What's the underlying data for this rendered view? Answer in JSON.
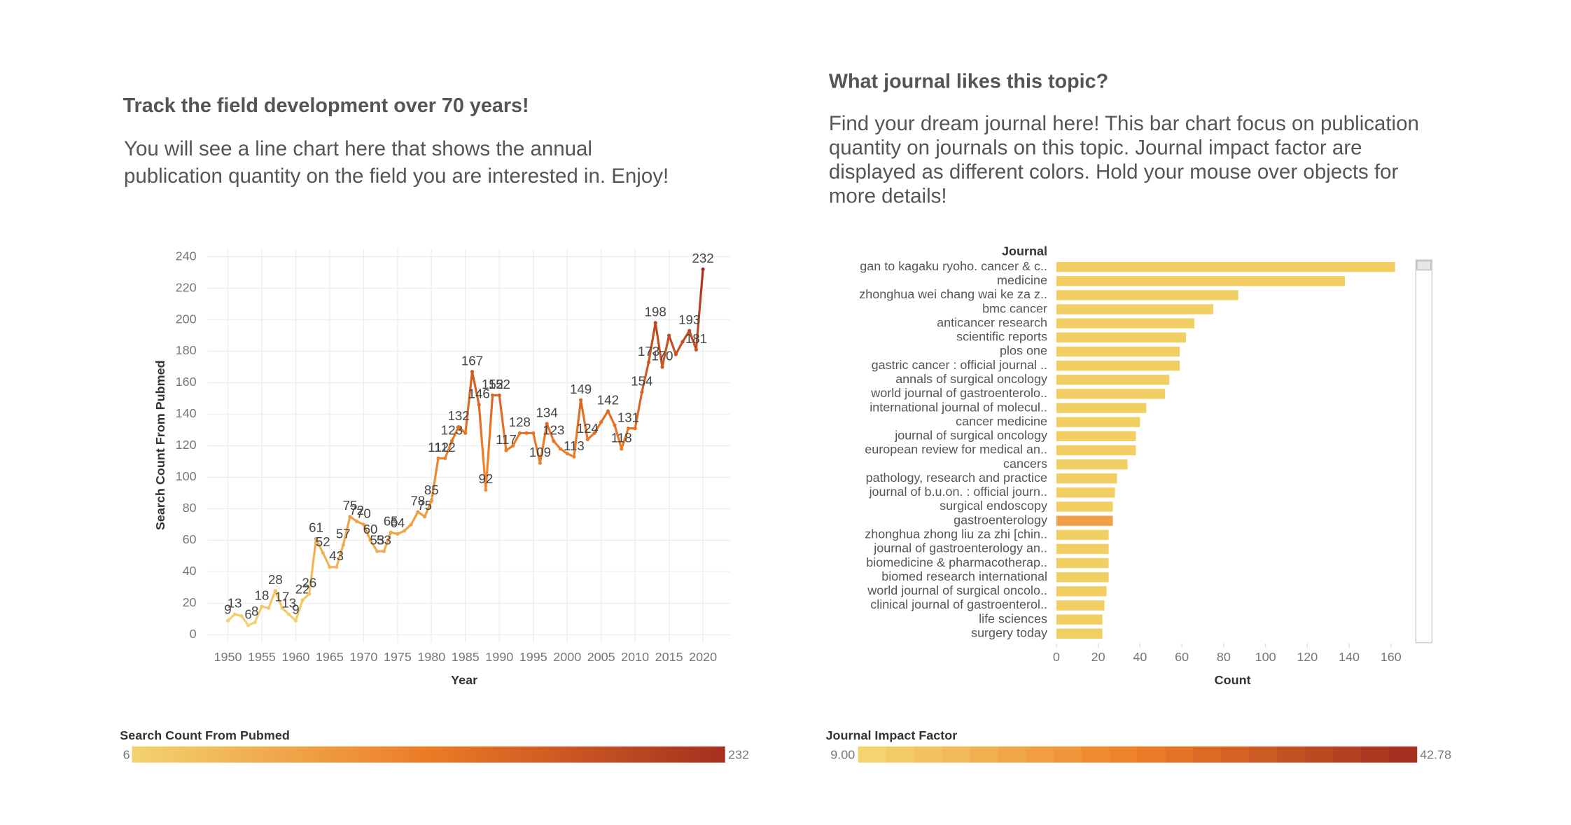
{
  "chart_data": [
    {
      "type": "line",
      "title": "Track the field development over 70 years!",
      "subtitle_lines": [
        "You will see a line chart here that shows the annual",
        "publication quantity on the field you are interested in. Enjoy!"
      ],
      "x_label": "Year",
      "y_label": "Search Count From Pubmed",
      "x": [
        1950,
        1951,
        1952,
        1953,
        1954,
        1955,
        1956,
        1957,
        1958,
        1959,
        1960,
        1961,
        1962,
        1963,
        1964,
        1965,
        1966,
        1967,
        1968,
        1969,
        1970,
        1971,
        1972,
        1973,
        1974,
        1975,
        1976,
        1977,
        1978,
        1979,
        1980,
        1981,
        1982,
        1983,
        1984,
        1985,
        1986,
        1987,
        1988,
        1989,
        1990,
        1991,
        1992,
        1993,
        1994,
        1995,
        1996,
        1997,
        1998,
        1999,
        2000,
        2001,
        2002,
        2003,
        2004,
        2005,
        2006,
        2007,
        2008,
        2009,
        2010,
        2011,
        2012,
        2013,
        2014,
        2015,
        2016,
        2017,
        2018,
        2019,
        2020
      ],
      "values": [
        9,
        13,
        12,
        6,
        8,
        18,
        17,
        28,
        17,
        13,
        9,
        22,
        26,
        61,
        52,
        43,
        43,
        57,
        75,
        72,
        70,
        60,
        53,
        53,
        65,
        64,
        66,
        70,
        78,
        75,
        85,
        112,
        112,
        123,
        132,
        128,
        167,
        146,
        92,
        152,
        152,
        117,
        120,
        128,
        128,
        128,
        109,
        134,
        123,
        118,
        115,
        113,
        149,
        124,
        128,
        135,
        142,
        133,
        118,
        131,
        131,
        154,
        173,
        198,
        170,
        190,
        178,
        186,
        193,
        181,
        232
      ],
      "value_labels": [
        "9",
        "13",
        null,
        "6",
        "8",
        "18",
        null,
        "28",
        "17",
        "13",
        "9",
        "22",
        "26",
        "61",
        "52",
        null,
        "43",
        "57",
        "75",
        "72",
        "70",
        "60",
        "53",
        "53",
        "65",
        "64",
        null,
        null,
        "78",
        "75",
        "85",
        "112",
        "112",
        "123",
        "132",
        null,
        "167",
        "146",
        "92",
        "152",
        "152",
        "117",
        null,
        "128",
        null,
        null,
        "109",
        "134",
        "123",
        null,
        null,
        "113",
        "149",
        "124",
        null,
        null,
        "142",
        null,
        "118",
        "131",
        null,
        "154",
        "173",
        "198",
        "170",
        null,
        null,
        null,
        "193",
        "181",
        "232"
      ],
      "xlim": [
        1947,
        2024
      ],
      "xticks": [
        1950,
        1955,
        1960,
        1965,
        1970,
        1975,
        1980,
        1985,
        1990,
        1995,
        2000,
        2005,
        2010,
        2015,
        2020
      ],
      "ylim": [
        -5,
        245
      ],
      "yticks": [
        0,
        20,
        40,
        60,
        80,
        100,
        120,
        140,
        160,
        180,
        200,
        220,
        240
      ],
      "grid": true,
      "color_scale": {
        "title": "Search Count From Pubmed",
        "min": 6,
        "max": 232,
        "colors": [
          "#f3d36f",
          "#ec7b26",
          "#a5301f"
        ]
      }
    },
    {
      "type": "hbar",
      "title": "What journal likes this topic?",
      "subtitle_lines": [
        "Find your dream journal here! This bar chart focus on publication",
        "quantity on journals on this topic. Journal impact factor are",
        "displayed as different colors. Hold your mouse over objects for",
        "more details!"
      ],
      "x_label": "Count",
      "y_label": "Journal",
      "categories": [
        "gan to kagaku ryoho. cancer & c..",
        "medicine",
        "zhonghua wei chang wai ke za z..",
        "bmc cancer",
        "anticancer research",
        "scientific reports",
        "plos one",
        "gastric cancer : official journal ..",
        "annals of surgical oncology",
        "world journal of gastroenterolo..",
        "international journal of molecul..",
        "cancer medicine",
        "journal of surgical oncology",
        "european review for medical an..",
        "cancers",
        "pathology, research and practice",
        "journal of b.u.on. : official journ..",
        "surgical endoscopy",
        "gastroenterology",
        "zhonghua zhong liu za zhi [chin..",
        "journal of gastroenterology an..",
        "biomedicine & pharmacotherap..",
        "biomed research international",
        "world journal of surgical oncolo..",
        "clinical journal of gastroenterol..",
        "life sciences",
        "surgery today"
      ],
      "values": [
        162,
        138,
        87,
        75,
        66,
        62,
        59,
        59,
        54,
        52,
        43,
        40,
        38,
        38,
        34,
        29,
        28,
        27,
        27,
        25,
        25,
        25,
        25,
        24,
        23,
        22,
        22
      ],
      "colors": [
        "#f2cf63",
        "#f2cf63",
        "#f2cf63",
        "#f2cf63",
        "#f2cf63",
        "#f2cf63",
        "#f2cf63",
        "#f2cf63",
        "#f2cf63",
        "#f2cf63",
        "#f2cf63",
        "#f2cf63",
        "#f2cf63",
        "#f2cf63",
        "#f2cf63",
        "#f2cf63",
        "#f2cf63",
        "#f2cf63",
        "#f0a048",
        "#f2cf63",
        "#f2cf63",
        "#f2cf63",
        "#f2cf63",
        "#f2cf63",
        "#f2cf63",
        "#f2cf63",
        "#f2cf63"
      ],
      "xlim": [
        0,
        170
      ],
      "xticks": [
        0,
        20,
        40,
        60,
        80,
        100,
        120,
        140,
        160
      ],
      "color_scale": {
        "title": "Journal Impact Factor",
        "min": {
          "value": 9,
          "label": "9.00"
        },
        "max": {
          "value": 42.78,
          "label": "42.78"
        },
        "colors": [
          "#f3d46e",
          "#ee7f27",
          "#a5301f"
        ],
        "steps": 20
      }
    }
  ]
}
